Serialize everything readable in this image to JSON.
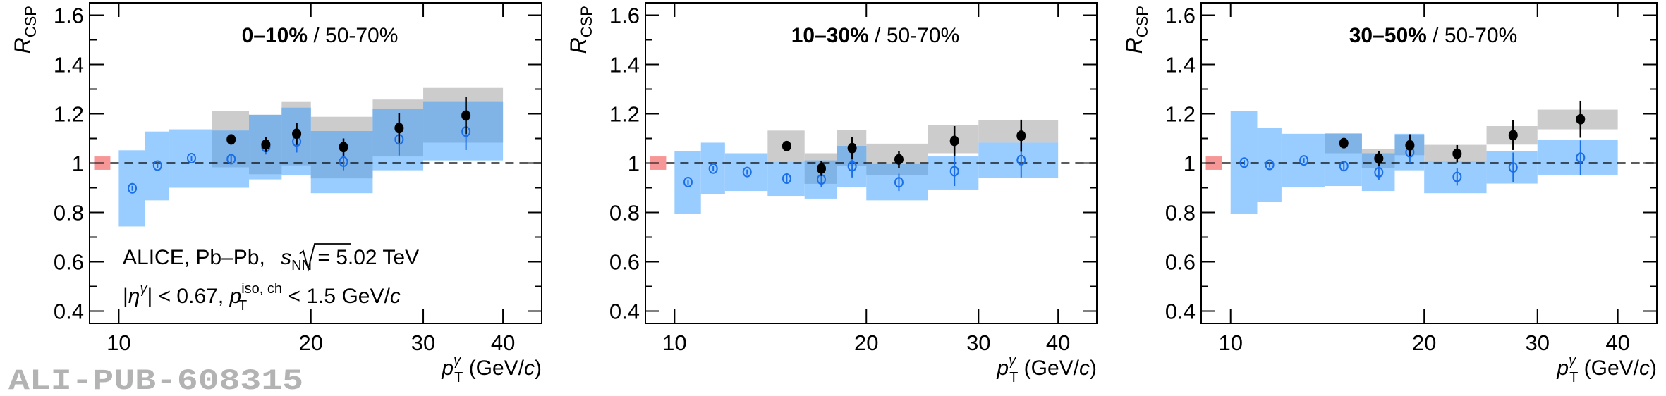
{
  "chart_data": {
    "type": "scatter",
    "xscale": "log",
    "xlim": [
      9,
      46
    ],
    "ylim": [
      0.35,
      1.65
    ],
    "grid": false,
    "yticks": [
      0.4,
      0.6,
      0.8,
      1.0,
      1.2,
      1.4,
      1.6
    ],
    "ytick_labels": [
      "0.4",
      "0.6",
      "0.8",
      "1",
      "1.2",
      "1.4",
      "1.6"
    ],
    "xticks": [
      10,
      20,
      30,
      40
    ],
    "xtick_labels": [
      "10",
      "20",
      "30",
      "40"
    ],
    "ylabel": {
      "main": "R",
      "sub": "CSP"
    },
    "xlabel": {
      "main": "p",
      "sup": "γ",
      "sub": "T",
      "open": " (GeV/",
      "italic": "c",
      "close": ")"
    },
    "reference_line": 1.0,
    "normalization_box": {
      "x": [
        9.15,
        9.7
      ],
      "y": [
        0.973,
        1.027
      ],
      "color": "#f79696"
    },
    "colors": {
      "blue_sys": "#99ccff",
      "gray_sys": "#cccccc",
      "overlap": "#80b3e6",
      "blue_marker": "#1a6ee8",
      "black_marker": "#000000"
    },
    "bin_edges": [
      10,
      11,
      12,
      14,
      16,
      18,
      20,
      25,
      30,
      40
    ],
    "bin_centers": [
      10.5,
      11.5,
      13,
      15,
      17,
      19,
      22.5,
      27.5,
      35
    ],
    "annotation": {
      "line1": {
        "text": "ALICE, Pb–Pb, ",
        "s": "s",
        "sub": "NN",
        "rest": " = 5.02 TeV"
      },
      "line2": {
        "open": "|",
        "eta": "η",
        "sup": "γ",
        "mid": "| < 0.67, ",
        "p": "p",
        "psup": "iso, ch",
        "psub": "T",
        "rest": " < 1.5 GeV/",
        "c": "c"
      }
    },
    "watermark": "ALI-PUB-608315",
    "panels": [
      {
        "title_bold": "0–10%",
        "title_rest": " / 50-70%",
        "open_series": {
          "y": [
            0.898,
            0.99,
            1.02,
            1.016,
            1.065,
            1.088,
            1.006,
            1.096,
            1.128
          ],
          "stat": [
            0.01,
            0.01,
            0.01,
            0.02,
            0.03,
            0.045,
            0.035,
            0.065,
            0.075
          ],
          "sys_lo": [
            0.743,
            0.849,
            0.9,
            0.9,
            0.934,
            0.952,
            0.878,
            0.971,
            1.011
          ],
          "sys_hi": [
            1.052,
            1.128,
            1.137,
            1.132,
            1.196,
            1.225,
            1.13,
            1.219,
            1.248
          ]
        },
        "filled_series": {
          "x": [
            15,
            17,
            19,
            22.5,
            27.5,
            35
          ],
          "y": [
            1.096,
            1.075,
            1.119,
            1.065,
            1.142,
            1.193
          ],
          "stat": [
            0.02,
            0.03,
            0.045,
            0.035,
            0.06,
            0.075
          ],
          "sys_lo": [
            0.983,
            0.955,
            0.991,
            0.938,
            1.027,
            1.083
          ],
          "sys_hi": [
            1.211,
            1.196,
            1.248,
            1.188,
            1.258,
            1.305
          ]
        }
      },
      {
        "title_bold": "10–30%",
        "title_rest": " / 50-70%",
        "open_series": {
          "y": [
            0.923,
            0.978,
            0.964,
            0.937,
            0.934,
            0.987,
            0.922,
            0.967,
            1.012
          ],
          "stat": [
            0.01,
            0.01,
            0.01,
            0.02,
            0.03,
            0.045,
            0.035,
            0.06,
            0.07
          ],
          "sys_lo": [
            0.794,
            0.873,
            0.887,
            0.867,
            0.856,
            0.902,
            0.849,
            0.893,
            0.939
          ],
          "sys_hi": [
            1.049,
            1.083,
            1.04,
            1.006,
            1.011,
            1.07,
            0.996,
            1.027,
            1.083
          ]
        },
        "filled_series": {
          "x": [
            15,
            17,
            19,
            22.5,
            27.5,
            35
          ],
          "y": [
            1.069,
            0.978,
            1.061,
            1.015,
            1.09,
            1.111
          ],
          "stat": [
            0.02,
            0.03,
            0.045,
            0.035,
            0.06,
            0.065
          ],
          "sys_lo": [
            1.006,
            0.916,
            0.988,
            0.95,
            1.04,
            1.083
          ],
          "sys_hi": [
            1.132,
            1.04,
            1.133,
            1.079,
            1.155,
            1.174
          ]
        }
      },
      {
        "title_bold": "30–50%",
        "title_rest": " / 50-70%",
        "open_series": {
          "y": [
            1.002,
            0.993,
            1.011,
            0.988,
            0.963,
            1.044,
            0.944,
            0.983,
            1.022
          ],
          "stat": [
            0.01,
            0.01,
            0.01,
            0.02,
            0.03,
            0.045,
            0.035,
            0.06,
            0.07
          ],
          "sys_lo": [
            0.794,
            0.842,
            0.903,
            0.907,
            0.887,
            0.971,
            0.878,
            0.917,
            0.953
          ],
          "sys_hi": [
            1.211,
            1.142,
            1.119,
            1.119,
            1.04,
            1.119,
            1.01,
            1.05,
            1.094
          ]
        },
        "filled_series": {
          "x": [
            15,
            17,
            19,
            22.5,
            27.5,
            35
          ],
          "y": [
            1.081,
            1.019,
            1.072,
            1.038,
            1.113,
            1.178
          ],
          "stat": [
            0.02,
            0.03,
            0.045,
            0.035,
            0.06,
            0.075
          ],
          "sys_lo": [
            1.04,
            0.979,
            1.032,
            1.01,
            1.075,
            1.137
          ],
          "sys_hi": [
            1.121,
            1.058,
            1.114,
            1.074,
            1.15,
            1.217
          ]
        }
      }
    ]
  }
}
